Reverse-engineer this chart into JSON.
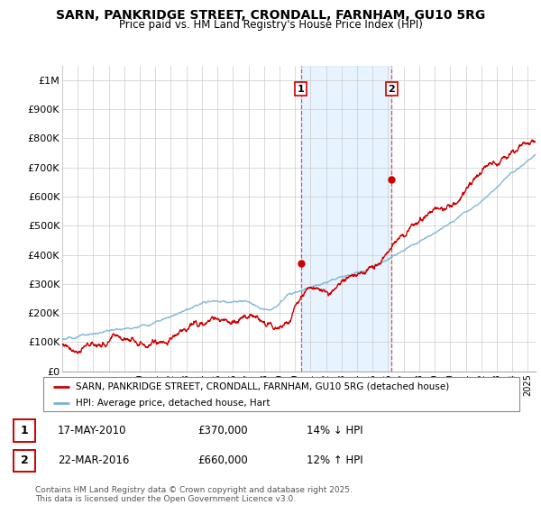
{
  "title": "SARN, PANKRIDGE STREET, CRONDALL, FARNHAM, GU10 5RG",
  "subtitle": "Price paid vs. HM Land Registry's House Price Index (HPI)",
  "ylabel_ticks": [
    "£0",
    "£100K",
    "£200K",
    "£300K",
    "£400K",
    "£500K",
    "£600K",
    "£700K",
    "£800K",
    "£900K",
    "£1M"
  ],
  "ytick_values": [
    0,
    100000,
    200000,
    300000,
    400000,
    500000,
    600000,
    700000,
    800000,
    900000,
    1000000
  ],
  "ylim": [
    0,
    1050000
  ],
  "xlim_start": 1995.0,
  "xlim_end": 2025.5,
  "hpi_color": "#7ab3d4",
  "price_color": "#cc0000",
  "marker1_x": 2010.38,
  "marker1_y": 370000,
  "marker1_label": "1",
  "marker2_x": 2016.23,
  "marker2_y": 660000,
  "marker2_label": "2",
  "annotation1_date": "17-MAY-2010",
  "annotation1_price": "£370,000",
  "annotation1_hpi": "14% ↓ HPI",
  "annotation2_date": "22-MAR-2016",
  "annotation2_price": "£660,000",
  "annotation2_hpi": "12% ↑ HPI",
  "legend_line1": "SARN, PANKRIDGE STREET, CRONDALL, FARNHAM, GU10 5RG (detached house)",
  "legend_line2": "HPI: Average price, detached house, Hart",
  "footer": "Contains HM Land Registry data © Crown copyright and database right 2025.\nThis data is licensed under the Open Government Licence v3.0.",
  "shaded_region_start": 2010.38,
  "shaded_region_end": 2016.23
}
